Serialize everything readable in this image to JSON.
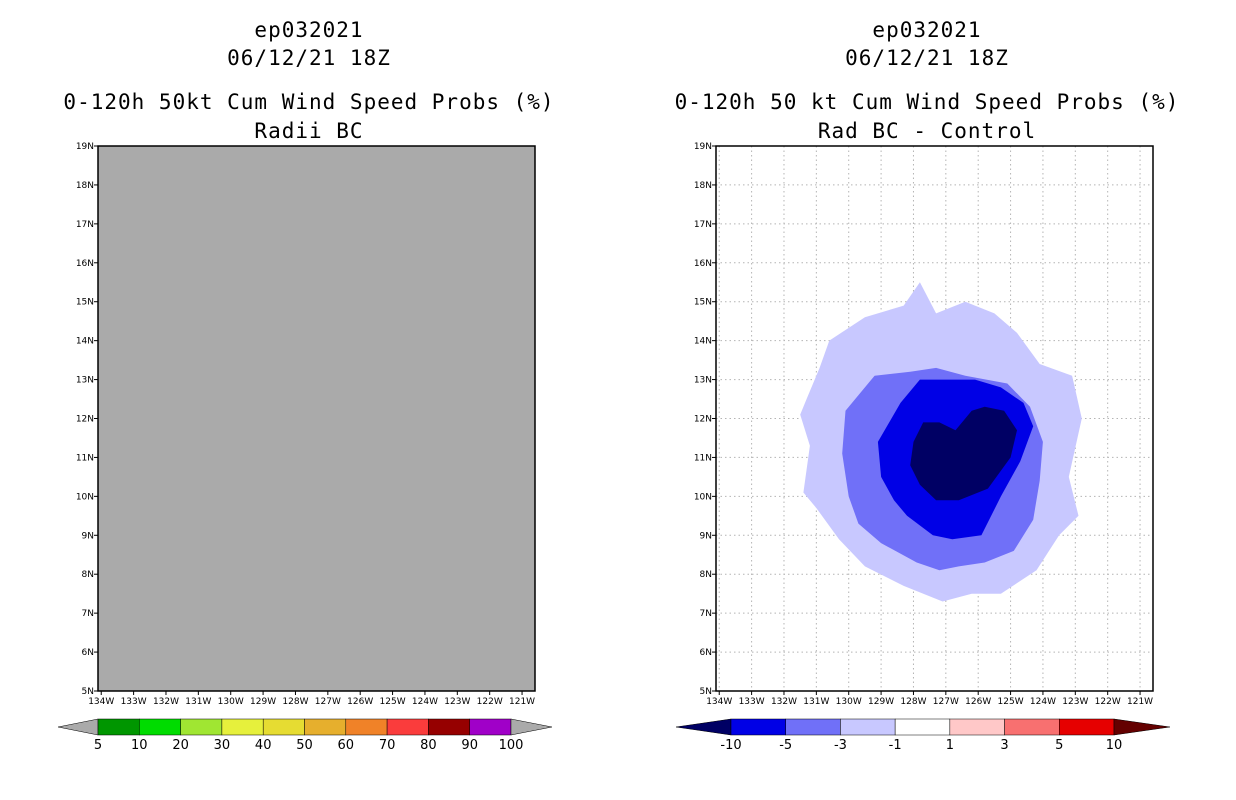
{
  "chart_data": [
    {
      "type": "heatmap",
      "case_id": "ep032021",
      "date": "06/12/21 18Z",
      "title": "0-120h 50kt Cum Wind Speed Probs (%)",
      "subtitle": "Radii BC",
      "fill_color": "#aaaaaa",
      "fill_description": "uniform background, no contours above 5%",
      "x_ticks": [
        "134W",
        "133W",
        "132W",
        "131W",
        "130W",
        "129W",
        "128W",
        "127W",
        "126W",
        "125W",
        "124W",
        "123W",
        "122W",
        "121W"
      ],
      "y_ticks": [
        "5N",
        "6N",
        "7N",
        "8N",
        "9N",
        "10N",
        "11N",
        "12N",
        "13N",
        "14N",
        "15N",
        "16N",
        "17N",
        "18N",
        "19N"
      ],
      "xlim": [
        -134.1,
        -120.6
      ],
      "ylim": [
        5,
        19
      ],
      "grid": false,
      "colorbar": {
        "labels": [
          "5",
          "10",
          "20",
          "30",
          "40",
          "50",
          "60",
          "70",
          "80",
          "90",
          "100"
        ],
        "colors": [
          "#aaaaaa",
          "#009600",
          "#00dc00",
          "#a0e632",
          "#e6f03c",
          "#e6dc32",
          "#e6af2d",
          "#f08228",
          "#fa3c3c",
          "#960000",
          "#a000c8",
          "#aaaaaa"
        ]
      }
    },
    {
      "type": "heatmap",
      "case_id": "ep032021",
      "date": "06/12/21 18Z",
      "title": "0-120h 50 kt Cum Wind Speed Probs (%)",
      "subtitle": "Rad BC - Control",
      "x_ticks": [
        "134W",
        "133W",
        "132W",
        "131W",
        "130W",
        "129W",
        "128W",
        "127W",
        "126W",
        "125W",
        "124W",
        "123W",
        "122W",
        "121W"
      ],
      "y_ticks": [
        "5N",
        "6N",
        "7N",
        "8N",
        "9N",
        "10N",
        "11N",
        "12N",
        "13N",
        "14N",
        "15N",
        "16N",
        "17N",
        "18N",
        "19N"
      ],
      "xlim": [
        -134.1,
        -120.6
      ],
      "ylim": [
        5,
        19
      ],
      "grid": true,
      "contours": [
        {
          "level": "-1 to -3",
          "color": "#c8c8ff",
          "points": [
            [
              -131.3,
              12.5
            ],
            [
              -130.9,
              13.3
            ],
            [
              -130.6,
              14.0
            ],
            [
              -129.5,
              14.6
            ],
            [
              -128.3,
              14.9
            ],
            [
              -127.8,
              15.5
            ],
            [
              -127.3,
              14.7
            ],
            [
              -126.4,
              15.0
            ],
            [
              -125.5,
              14.7
            ],
            [
              -124.8,
              14.2
            ],
            [
              -124.1,
              13.4
            ],
            [
              -123.1,
              13.1
            ],
            [
              -122.8,
              12.0
            ],
            [
              -123.2,
              10.5
            ],
            [
              -122.9,
              9.5
            ],
            [
              -123.5,
              9.0
            ],
            [
              -124.2,
              8.1
            ],
            [
              -125.3,
              7.5
            ],
            [
              -126.2,
              7.5
            ],
            [
              -127.1,
              7.3
            ],
            [
              -128.3,
              7.7
            ],
            [
              -129.5,
              8.2
            ],
            [
              -130.3,
              8.9
            ],
            [
              -131.0,
              9.7
            ],
            [
              -131.4,
              10.1
            ],
            [
              -131.2,
              11.3
            ],
            [
              -131.5,
              12.1
            ]
          ]
        },
        {
          "level": "-3 to -5",
          "color": "#7070f8",
          "points": [
            [
              -130.2,
              11.1
            ],
            [
              -130.1,
              12.2
            ],
            [
              -129.2,
              13.1
            ],
            [
              -128.1,
              13.2
            ],
            [
              -127.3,
              13.3
            ],
            [
              -126.4,
              13.1
            ],
            [
              -125.1,
              12.9
            ],
            [
              -124.4,
              12.3
            ],
            [
              -124.0,
              11.4
            ],
            [
              -124.1,
              10.4
            ],
            [
              -124.3,
              9.4
            ],
            [
              -124.9,
              8.6
            ],
            [
              -125.8,
              8.3
            ],
            [
              -126.6,
              8.2
            ],
            [
              -127.2,
              8.1
            ],
            [
              -127.9,
              8.3
            ],
            [
              -129.0,
              8.8
            ],
            [
              -129.7,
              9.3
            ],
            [
              -130.0,
              10.0
            ]
          ]
        },
        {
          "level": "-5 to -10",
          "color": "#0000e6",
          "points": [
            [
              -129.1,
              11.4
            ],
            [
              -128.4,
              12.4
            ],
            [
              -127.8,
              13.0
            ],
            [
              -127.0,
              13.0
            ],
            [
              -126.1,
              13.0
            ],
            [
              -125.3,
              12.8
            ],
            [
              -124.6,
              12.4
            ],
            [
              -124.3,
              11.8
            ],
            [
              -124.7,
              10.9
            ],
            [
              -125.3,
              10.0
            ],
            [
              -125.9,
              9.0
            ],
            [
              -126.8,
              8.9
            ],
            [
              -127.4,
              9.0
            ],
            [
              -128.2,
              9.5
            ],
            [
              -128.6,
              9.9
            ],
            [
              -129.0,
              10.5
            ]
          ]
        },
        {
          "level": "< -10",
          "color": "#000064",
          "points": [
            [
              -128.0,
              11.4
            ],
            [
              -127.7,
              11.9
            ],
            [
              -127.2,
              11.9
            ],
            [
              -126.7,
              11.7
            ],
            [
              -126.2,
              12.2
            ],
            [
              -125.8,
              12.3
            ],
            [
              -125.2,
              12.2
            ],
            [
              -124.8,
              11.7
            ],
            [
              -125.0,
              11.0
            ],
            [
              -125.7,
              10.2
            ],
            [
              -126.6,
              9.9
            ],
            [
              -127.3,
              9.9
            ],
            [
              -127.8,
              10.3
            ],
            [
              -128.1,
              10.8
            ]
          ]
        }
      ],
      "colorbar": {
        "labels": [
          "-10",
          "-5",
          "-3",
          "-1",
          "1",
          "3",
          "5",
          "10"
        ],
        "colors": [
          "#000064",
          "#0000e6",
          "#7070f8",
          "#c8c8ff",
          "#ffffff",
          "#ffc8c8",
          "#f87070",
          "#e60000",
          "#640000"
        ]
      }
    }
  ]
}
